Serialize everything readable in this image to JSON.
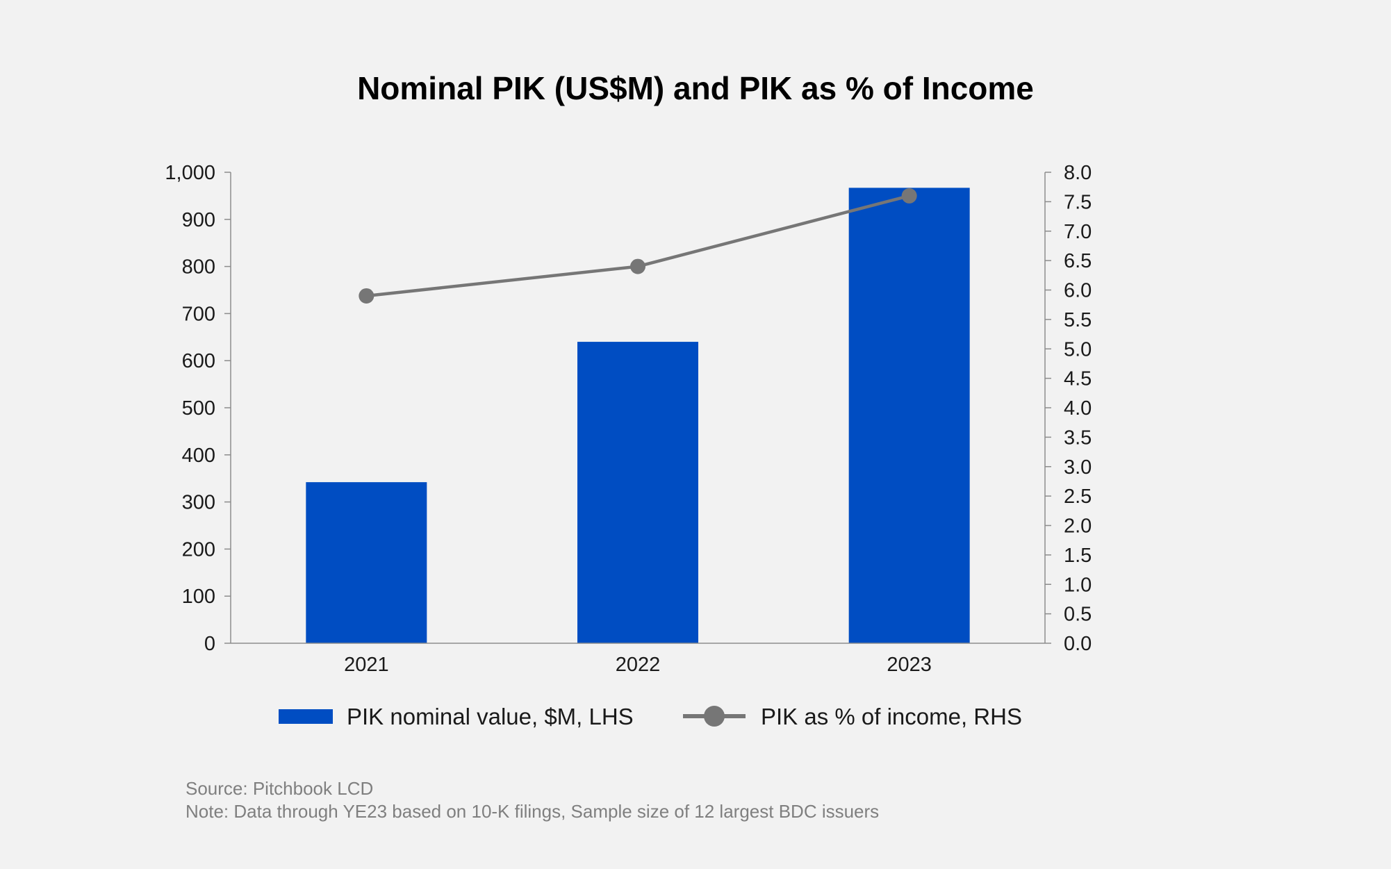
{
  "chart_data": {
    "type": "bar",
    "title": "Nominal PIK (US$M) and PIK as % of Income",
    "categories": [
      "2021",
      "2022",
      "2023"
    ],
    "series": [
      {
        "name": "PIK nominal value, $M, LHS",
        "type": "bar",
        "axis": "left",
        "values": [
          342,
          640,
          967
        ],
        "color": "#004dc2"
      },
      {
        "name": "PIK as % of income, RHS",
        "type": "line",
        "axis": "right",
        "values": [
          5.9,
          6.4,
          7.6
        ],
        "color": "#767676"
      }
    ],
    "y_left": {
      "min": 0,
      "max": 1000,
      "ticks": [
        0,
        100,
        200,
        300,
        400,
        500,
        600,
        700,
        800,
        900,
        1000
      ],
      "tick_labels": [
        "0",
        "100",
        "200",
        "300",
        "400",
        "500",
        "600",
        "700",
        "800",
        "900",
        "1,000"
      ]
    },
    "y_right": {
      "min": 0,
      "max": 8,
      "ticks": [
        0,
        0.5,
        1,
        1.5,
        2,
        2.5,
        3,
        3.5,
        4,
        4.5,
        5,
        5.5,
        6,
        6.5,
        7,
        7.5,
        8
      ],
      "tick_labels": [
        "0.0",
        "0.5",
        "1.0",
        "1.5",
        "2.0",
        "2.5",
        "3.0",
        "3.5",
        "4.0",
        "4.5",
        "5.0",
        "5.5",
        "6.0",
        "6.5",
        "7.0",
        "7.5",
        "8.0"
      ]
    },
    "xlabel": "",
    "ylabel": "",
    "grid": false,
    "legend_position": "bottom"
  },
  "footer": {
    "source": "Source: Pitchbook LCD",
    "note": "Note: Data through YE23 based on 10-K filings, Sample size of 12 largest BDC issuers"
  },
  "colors": {
    "background": "#f2f2f2",
    "axis": "#8c8c8c",
    "bar": "#004dc2",
    "line": "#767676"
  }
}
